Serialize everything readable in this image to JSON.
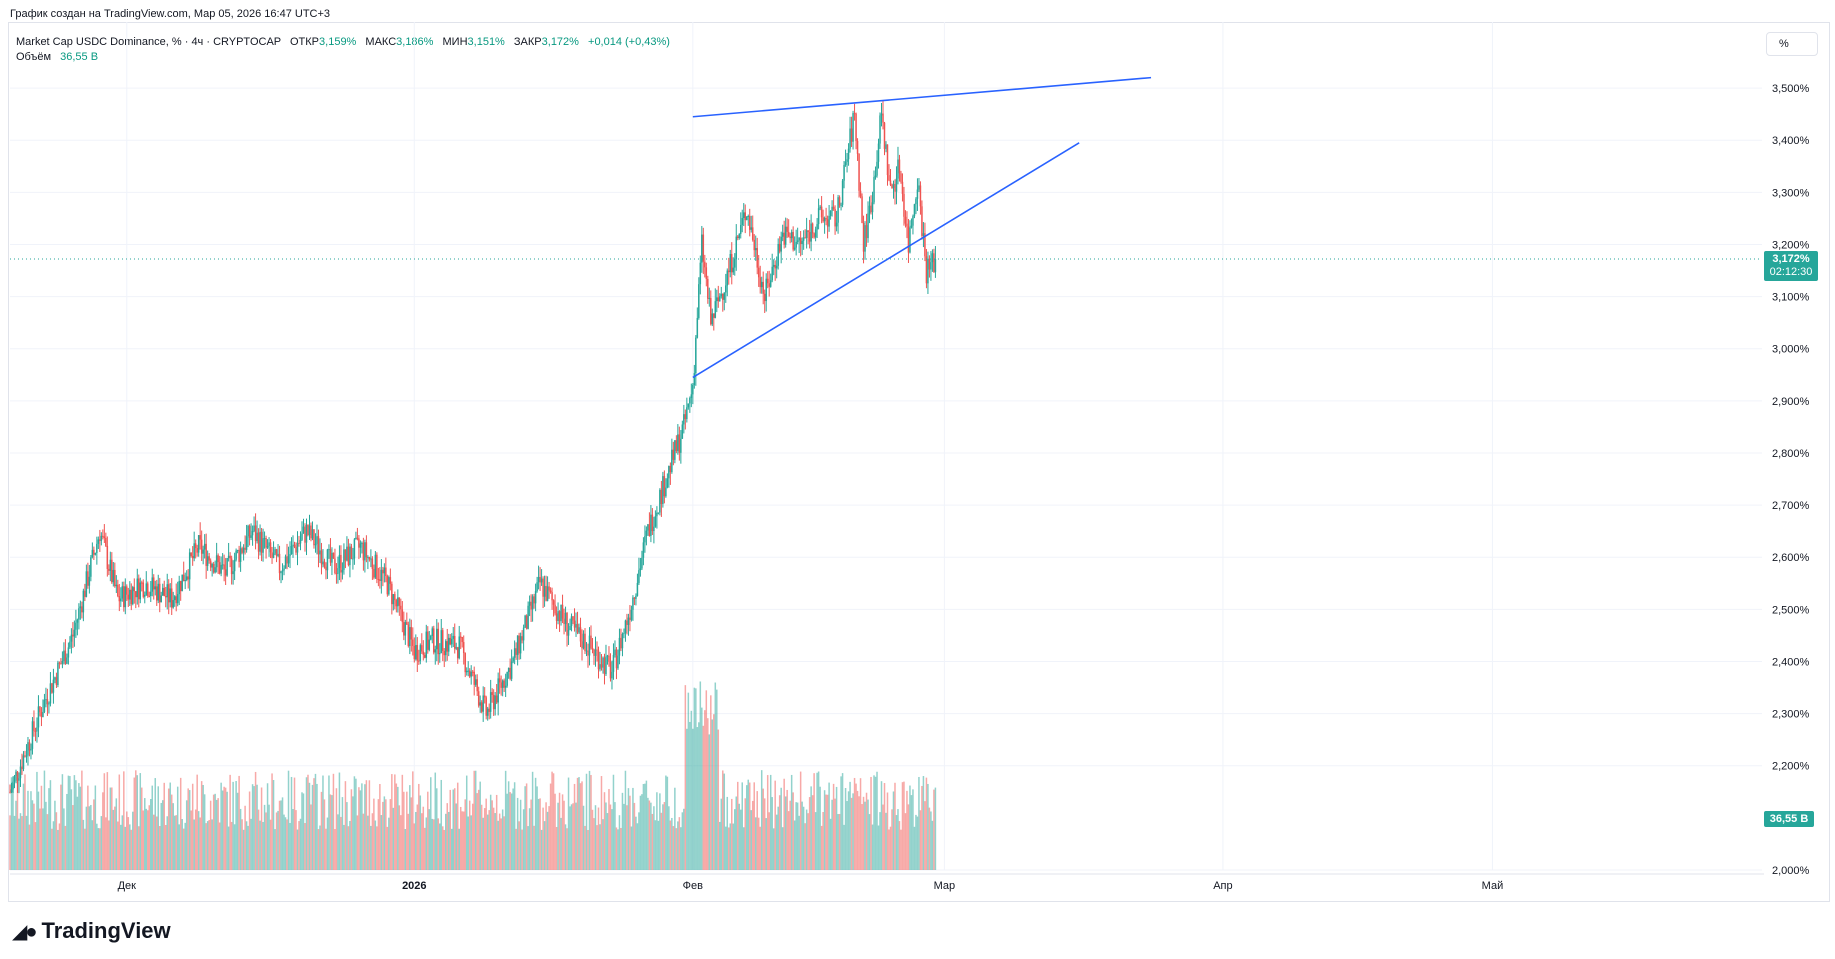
{
  "header": {
    "created_text": "График создан на TradingView.com, Мар 05, 2026 16:47 UTC+3"
  },
  "legend": {
    "symbol": "Market Cap USDC Dominance, % · 4ч · CRYPTOCAP",
    "open_label": "ОТКР",
    "open_value": "3,159%",
    "high_label": "МАКС",
    "high_value": "3,186%",
    "low_label": "МИН",
    "low_value": "3,151%",
    "close_label": "ЗАКР",
    "close_value": "3,172%",
    "change_value": "+0,014 (+0,43%)",
    "volume_label": "Объём",
    "volume_value": "36,55 B"
  },
  "scale_button": {
    "label": "%"
  },
  "price_tag": {
    "price": "3,172%",
    "countdown": "02:12:30"
  },
  "volume_tag": {
    "value": "36,55 B"
  },
  "footer": {
    "brand": "TradingView"
  },
  "colors": {
    "up": "#26a69a",
    "down": "#ef5350",
    "line": "#2962ff",
    "accent": "#089981"
  },
  "chart_data": {
    "type": "candlestick",
    "title": "Market Cap USDC Dominance, %",
    "timeframe": "4ч",
    "ylim": [
      2.0,
      3.55
    ],
    "y_ticks": [
      {
        "value": 3.5,
        "label": "3,500%"
      },
      {
        "value": 3.4,
        "label": "3,400%"
      },
      {
        "value": 3.3,
        "label": "3,300%"
      },
      {
        "value": 3.2,
        "label": "3,200%"
      },
      {
        "value": 3.1,
        "label": "3,100%"
      },
      {
        "value": 3.0,
        "label": "3,000%"
      },
      {
        "value": 2.9,
        "label": "2,900%"
      },
      {
        "value": 2.8,
        "label": "2,800%"
      },
      {
        "value": 2.7,
        "label": "2,700%"
      },
      {
        "value": 2.6,
        "label": "2,600%"
      },
      {
        "value": 2.5,
        "label": "2,500%"
      },
      {
        "value": 2.4,
        "label": "2,400%"
      },
      {
        "value": 2.3,
        "label": "2,300%"
      },
      {
        "value": 2.2,
        "label": "2,200%"
      },
      {
        "value": 2.0,
        "label": "2,000%"
      }
    ],
    "x_ticks": [
      {
        "label": "Дек",
        "bold": false
      },
      {
        "label": "2026",
        "bold": true
      },
      {
        "label": "Фев",
        "bold": false
      },
      {
        "label": "Мар",
        "bold": false
      },
      {
        "label": "Апр",
        "bold": false
      },
      {
        "label": "Май",
        "bold": false
      }
    ],
    "x_tick_days": [
      13,
      45,
      76,
      104,
      135,
      165
    ],
    "x_span_days": 195,
    "key_prices": [
      {
        "day": 0,
        "price": 2.15
      },
      {
        "day": 4,
        "price": 2.33
      },
      {
        "day": 7,
        "price": 2.45
      },
      {
        "day": 10,
        "price": 2.65
      },
      {
        "day": 12,
        "price": 2.52
      },
      {
        "day": 15,
        "price": 2.55
      },
      {
        "day": 18,
        "price": 2.52
      },
      {
        "day": 21,
        "price": 2.62
      },
      {
        "day": 24,
        "price": 2.57
      },
      {
        "day": 27,
        "price": 2.65
      },
      {
        "day": 30,
        "price": 2.58
      },
      {
        "day": 33,
        "price": 2.65
      },
      {
        "day": 36,
        "price": 2.58
      },
      {
        "day": 39,
        "price": 2.62
      },
      {
        "day": 42,
        "price": 2.55
      },
      {
        "day": 45,
        "price": 2.42
      },
      {
        "day": 47,
        "price": 2.44
      },
      {
        "day": 50,
        "price": 2.43
      },
      {
        "day": 53,
        "price": 2.3
      },
      {
        "day": 56,
        "price": 2.4
      },
      {
        "day": 59,
        "price": 2.55
      },
      {
        "day": 62,
        "price": 2.47
      },
      {
        "day": 65,
        "price": 2.42
      },
      {
        "day": 67,
        "price": 2.38
      },
      {
        "day": 69,
        "price": 2.5
      },
      {
        "day": 71,
        "price": 2.65
      },
      {
        "day": 73,
        "price": 2.75
      },
      {
        "day": 75,
        "price": 2.85
      },
      {
        "day": 76,
        "price": 2.93
      },
      {
        "day": 77,
        "price": 3.2
      },
      {
        "day": 78,
        "price": 3.05
      },
      {
        "day": 80,
        "price": 3.15
      },
      {
        "day": 82,
        "price": 3.27
      },
      {
        "day": 84,
        "price": 3.1
      },
      {
        "day": 86,
        "price": 3.22
      },
      {
        "day": 88,
        "price": 3.2
      },
      {
        "day": 90,
        "price": 3.25
      },
      {
        "day": 92,
        "price": 3.25
      },
      {
        "day": 94,
        "price": 3.45
      },
      {
        "day": 95,
        "price": 3.2
      },
      {
        "day": 96,
        "price": 3.3
      },
      {
        "day": 97,
        "price": 3.45
      },
      {
        "day": 98,
        "price": 3.3
      },
      {
        "day": 99,
        "price": 3.35
      },
      {
        "day": 100,
        "price": 3.2
      },
      {
        "day": 101,
        "price": 3.33
      },
      {
        "day": 102,
        "price": 3.15
      },
      {
        "day": 103,
        "price": 3.17
      }
    ],
    "volume_relative": true,
    "last_price": 3.172,
    "trendlines": [
      {
        "name": "upper",
        "from": {
          "day": 76,
          "price": 3.445
        },
        "to": {
          "day": 127,
          "price": 3.52
        }
      },
      {
        "name": "lower",
        "from": {
          "day": 76,
          "price": 2.945
        },
        "to": {
          "day": 119,
          "price": 3.395
        }
      }
    ]
  }
}
